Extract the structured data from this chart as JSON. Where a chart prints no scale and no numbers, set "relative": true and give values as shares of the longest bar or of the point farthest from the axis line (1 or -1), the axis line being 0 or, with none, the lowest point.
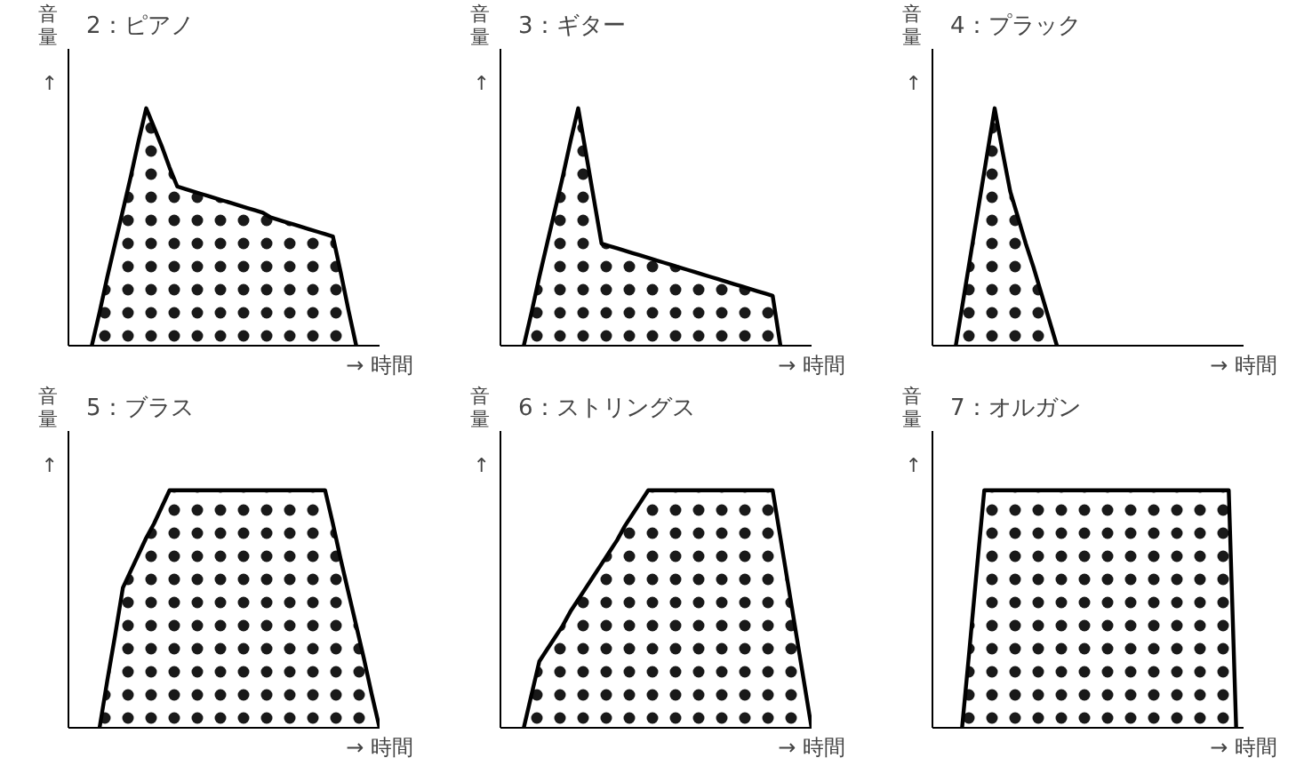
{
  "chart_data": [
    {
      "type": "area",
      "title": "2：ピアノ",
      "xlabel": "→ 時間",
      "ylabel": "音量 ↑",
      "relative": true,
      "tick_labels": false,
      "categories": [
        null,
        null,
        null,
        null,
        null,
        null,
        null,
        null,
        null,
        null,
        null,
        null,
        null,
        null,
        null,
        null,
        null,
        null,
        null,
        null,
        null,
        null,
        null,
        null,
        null,
        null,
        null,
        null,
        null,
        null,
        null,
        null,
        null,
        null,
        null,
        null,
        null,
        null,
        null,
        null,
        null
      ],
      "series": [
        {
          "color": "#000000",
          "values": [
            null,
            null,
            null,
            0,
            0.14,
            0.29,
            0.43,
            0.57,
            0.71,
            0.86,
            1,
            0.92,
            0.84,
            0.75,
            0.67,
            0.66,
            0.65,
            0.64,
            0.63,
            0.62,
            0.61,
            0.6,
            0.59,
            0.58,
            0.57,
            0.56,
            0.54,
            0.53,
            0.52,
            0.51,
            0.5,
            0.49,
            0.48,
            0.47,
            0.46,
            0.31,
            0.15,
            0,
            null,
            null,
            null
          ]
        }
      ]
    },
    {
      "type": "area",
      "title": "3：ギター",
      "xlabel": "→ 時間",
      "ylabel": "音量 ↑",
      "relative": true,
      "tick_labels": false,
      "categories": [
        null,
        null,
        null,
        null,
        null,
        null,
        null,
        null,
        null,
        null,
        null,
        null,
        null,
        null,
        null,
        null,
        null,
        null,
        null,
        null,
        null,
        null,
        null,
        null,
        null,
        null,
        null,
        null,
        null,
        null,
        null,
        null,
        null,
        null,
        null,
        null,
        null,
        null,
        null,
        null,
        null
      ],
      "series": [
        {
          "color": "#000000",
          "values": [
            null,
            null,
            null,
            0,
            0.14,
            0.29,
            0.43,
            0.57,
            0.71,
            0.86,
            1,
            0.81,
            0.62,
            0.43,
            0.42,
            0.41,
            0.4,
            0.39,
            0.38,
            0.37,
            0.36,
            0.35,
            0.34,
            0.33,
            0.32,
            0.31,
            0.3,
            0.29,
            0.28,
            0.27,
            0.26,
            0.25,
            0.24,
            0.23,
            0.22,
            0.21,
            0,
            null,
            null,
            null,
            null
          ]
        }
      ]
    },
    {
      "type": "area",
      "title": "4：プラック",
      "xlabel": "→ 時間",
      "ylabel": "音量 ↑",
      "relative": true,
      "tick_labels": false,
      "categories": [
        null,
        null,
        null,
        null,
        null,
        null,
        null,
        null,
        null,
        null,
        null,
        null,
        null,
        null,
        null,
        null,
        null,
        null,
        null,
        null,
        null,
        null,
        null,
        null,
        null,
        null,
        null,
        null,
        null,
        null,
        null,
        null,
        null,
        null,
        null,
        null,
        null,
        null,
        null,
        null,
        null
      ],
      "series": [
        {
          "color": "#000000",
          "values": [
            null,
            null,
            null,
            0,
            0.2,
            0.4,
            0.6,
            0.8,
            1,
            0.82,
            0.65,
            0.54,
            0.43,
            0.33,
            0.22,
            0.11,
            0,
            null,
            null,
            null,
            null,
            null,
            null,
            null,
            null,
            null,
            null,
            null,
            null,
            null,
            null,
            null,
            null,
            null,
            null,
            null,
            null,
            null,
            null,
            null,
            null
          ]
        }
      ]
    },
    {
      "type": "area",
      "title": "5：ブラス",
      "xlabel": "→ 時間",
      "ylabel": "音量 ↑",
      "relative": true,
      "tick_labels": false,
      "categories": [
        null,
        null,
        null,
        null,
        null,
        null,
        null,
        null,
        null,
        null,
        null,
        null,
        null,
        null,
        null,
        null,
        null,
        null,
        null,
        null,
        null,
        null,
        null,
        null,
        null,
        null,
        null,
        null,
        null,
        null,
        null,
        null,
        null,
        null,
        null,
        null,
        null,
        null,
        null,
        null,
        null
      ],
      "series": [
        {
          "color": "#000000",
          "values": [
            null,
            null,
            null,
            null,
            0,
            0.2,
            0.39,
            0.59,
            0.66,
            0.73,
            0.8,
            0.86,
            0.93,
            1,
            1,
            1,
            1,
            1,
            1,
            1,
            1,
            1,
            1,
            1,
            1,
            1,
            1,
            1,
            1,
            1,
            1,
            1,
            1,
            1,
            0.86,
            0.71,
            0.57,
            0.43,
            0.29,
            0.14,
            0
          ]
        }
      ]
    },
    {
      "type": "area",
      "title": "6：ストリングス",
      "xlabel": "→ 時間",
      "ylabel": "音量 ↑",
      "relative": true,
      "tick_labels": false,
      "categories": [
        null,
        null,
        null,
        null,
        null,
        null,
        null,
        null,
        null,
        null,
        null,
        null,
        null,
        null,
        null,
        null,
        null,
        null,
        null,
        null,
        null,
        null,
        null,
        null,
        null,
        null,
        null,
        null,
        null,
        null,
        null,
        null,
        null,
        null,
        null,
        null,
        null,
        null,
        null,
        null,
        null
      ],
      "series": [
        {
          "color": "#000000",
          "values": [
            null,
            null,
            null,
            0,
            0.14,
            0.28,
            0.33,
            0.38,
            0.43,
            0.49,
            0.54,
            0.59,
            0.64,
            0.69,
            0.74,
            0.79,
            0.85,
            0.9,
            0.95,
            1,
            1,
            1,
            1,
            1,
            1,
            1,
            1,
            1,
            1,
            1,
            1,
            1,
            1,
            1,
            1,
            1,
            0.8,
            0.6,
            0.4,
            0.2,
            0
          ]
        }
      ]
    },
    {
      "type": "area",
      "title": "7：オルガン",
      "xlabel": "→ 時間",
      "ylabel": "音量 ↑",
      "relative": true,
      "tick_labels": false,
      "categories": [
        null,
        null,
        null,
        null,
        null,
        null,
        null,
        null,
        null,
        null,
        null,
        null,
        null,
        null,
        null,
        null,
        null,
        null,
        null,
        null,
        null,
        null,
        null,
        null,
        null,
        null,
        null,
        null,
        null,
        null,
        null,
        null,
        null,
        null,
        null,
        null,
        null,
        null,
        null,
        null,
        null,
        null,
        null
      ],
      "series": [
        {
          "color": "#000000",
          "values": [
            null,
            null,
            null,
            null,
            0,
            0.33,
            0.67,
            1,
            1,
            1,
            1,
            1,
            1,
            1,
            1,
            1,
            1,
            1,
            1,
            1,
            1,
            1,
            1,
            1,
            1,
            1,
            1,
            1,
            1,
            1,
            1,
            1,
            1,
            1,
            1,
            1,
            1,
            1,
            1,
            1,
            1,
            0,
            null
          ]
        }
      ]
    }
  ]
}
